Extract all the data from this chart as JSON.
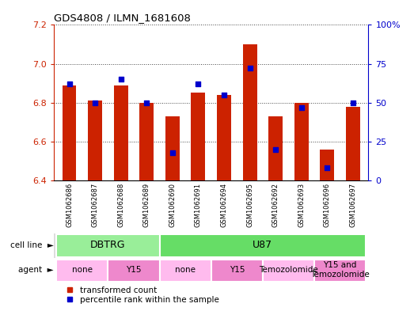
{
  "title": "GDS4808 / ILMN_1681608",
  "samples": [
    "GSM1062686",
    "GSM1062687",
    "GSM1062688",
    "GSM1062689",
    "GSM1062690",
    "GSM1062691",
    "GSM1062694",
    "GSM1062695",
    "GSM1062692",
    "GSM1062693",
    "GSM1062696",
    "GSM1062697"
  ],
  "transformed_count": [
    6.89,
    6.81,
    6.89,
    6.8,
    6.73,
    6.85,
    6.84,
    7.1,
    6.73,
    6.8,
    6.56,
    6.78
  ],
  "percentile_rank": [
    62,
    50,
    65,
    50,
    18,
    62,
    55,
    72,
    20,
    47,
    8,
    50
  ],
  "ylim_left": [
    6.4,
    7.2
  ],
  "ylim_right": [
    0,
    100
  ],
  "yticks_left": [
    6.4,
    6.6,
    6.8,
    7.0,
    7.2
  ],
  "yticks_right": [
    0,
    25,
    50,
    75,
    100
  ],
  "ytick_labels_right": [
    "0",
    "25",
    "50",
    "75",
    "100%"
  ],
  "bar_color": "#cc2200",
  "percentile_color": "#0000cc",
  "bar_bottom": 6.4,
  "cell_line_groups": [
    {
      "label": "DBTRG",
      "start": 0,
      "end": 4,
      "color": "#99ee99"
    },
    {
      "label": "U87",
      "start": 4,
      "end": 12,
      "color": "#66dd66"
    }
  ],
  "agent_groups": [
    {
      "label": "none",
      "start": 0,
      "end": 2,
      "color": "#ffbbee"
    },
    {
      "label": "Y15",
      "start": 2,
      "end": 4,
      "color": "#ee88cc"
    },
    {
      "label": "none",
      "start": 4,
      "end": 6,
      "color": "#ffbbee"
    },
    {
      "label": "Y15",
      "start": 6,
      "end": 8,
      "color": "#ee88cc"
    },
    {
      "label": "Temozolomide",
      "start": 8,
      "end": 10,
      "color": "#ffbbee"
    },
    {
      "label": "Y15 and\nTemozolomide",
      "start": 10,
      "end": 12,
      "color": "#ee88cc"
    }
  ],
  "grid_color": "#444444",
  "bar_width": 0.55,
  "legend_items": [
    {
      "label": "transformed count",
      "color": "#cc2200"
    },
    {
      "label": "percentile rank within the sample",
      "color": "#0000cc"
    }
  ]
}
